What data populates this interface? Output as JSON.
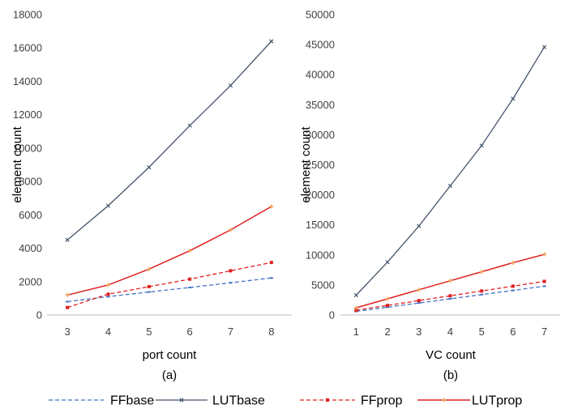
{
  "colors": {
    "FFbase": "#4472C4",
    "LUTbase": "#44546A",
    "FFprop": "#E02020",
    "LUTprop": "#E02020",
    "LUTprop_marker": "#F4A259",
    "axis": "#BFBFBF",
    "text": "#404040"
  },
  "legend": [
    {
      "name": "FFbase",
      "style": "dashed",
      "marker": "dash"
    },
    {
      "name": "LUTbase",
      "style": "solid",
      "marker": "x"
    },
    {
      "name": "FFprop",
      "style": "dashed",
      "marker": "square"
    },
    {
      "name": "LUTprop",
      "style": "solid",
      "marker": "plus"
    }
  ],
  "chart_data": [
    {
      "type": "line",
      "subcaption": "(a)",
      "xlabel": "port count",
      "ylabel": "element count",
      "x": [
        3,
        4,
        5,
        6,
        7,
        8
      ],
      "ylim": [
        0,
        18000
      ],
      "yticks": [
        0,
        2000,
        4000,
        6000,
        8000,
        10000,
        12000,
        14000,
        16000,
        18000
      ],
      "series": [
        {
          "name": "FFbase",
          "values": [
            800,
            1100,
            1380,
            1650,
            1930,
            2220
          ]
        },
        {
          "name": "LUTbase",
          "values": [
            4500,
            6550,
            8850,
            11350,
            13750,
            16400
          ]
        },
        {
          "name": "FFprop",
          "values": [
            450,
            1250,
            1700,
            2150,
            2650,
            3150
          ]
        },
        {
          "name": "LUTprop",
          "values": [
            1200,
            1800,
            2750,
            3850,
            5100,
            6500
          ]
        }
      ]
    },
    {
      "type": "line",
      "subcaption": "(b)",
      "xlabel": "VC count",
      "ylabel": "element count",
      "x": [
        1,
        2,
        3,
        4,
        5,
        6,
        7
      ],
      "ylim": [
        0,
        50000
      ],
      "yticks": [
        0,
        5000,
        10000,
        15000,
        20000,
        25000,
        30000,
        35000,
        40000,
        45000,
        50000
      ],
      "series": [
        {
          "name": "FFbase",
          "values": [
            600,
            1300,
            2000,
            2700,
            3400,
            4100,
            4800
          ]
        },
        {
          "name": "LUTbase",
          "values": [
            3300,
            8800,
            14800,
            21500,
            28200,
            36000,
            44600
          ]
        },
        {
          "name": "FFprop",
          "values": [
            800,
            1600,
            2400,
            3200,
            4000,
            4800,
            5600
          ]
        },
        {
          "name": "LUTprop",
          "values": [
            1200,
            2700,
            4200,
            5700,
            7200,
            8700,
            10100
          ]
        }
      ]
    }
  ]
}
